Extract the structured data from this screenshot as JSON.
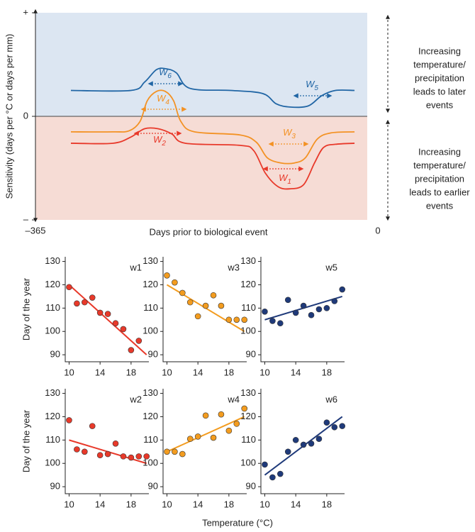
{
  "shared_x_label": "Temperature (°C)",
  "chart_data": [
    {
      "type": "line",
      "y_label": "Sensitivity (days per °C or days per mm)",
      "x_label": "Days prior to biological event",
      "xlim": [
        -365,
        0
      ],
      "xticks": [
        {
          "value": -365,
          "label": "–365"
        },
        0
      ],
      "ylim": [
        -1,
        1
      ],
      "yticks": [
        {
          "value": 1,
          "label": "+"
        },
        0,
        {
          "value": -1,
          "label": "–"
        }
      ],
      "positive_color": "#dce6f2",
      "negative_color": "#f6dcd5",
      "series": [
        {
          "color": "#2166a5",
          "x": [
            -326,
            -260,
            -245,
            -232,
            -222,
            -210,
            -195,
            -150,
            -115,
            -100,
            -85,
            -65,
            -50,
            -35,
            -14
          ],
          "values": [
            0.25,
            0.25,
            0.33,
            0.45,
            0.46,
            0.42,
            0.27,
            0.25,
            0.22,
            0.12,
            0.09,
            0.1,
            0.2,
            0.25,
            0.25
          ]
        },
        {
          "color": "#f39224",
          "x": [
            -326,
            -280,
            -262,
            -250,
            -242,
            -232,
            -222,
            -213,
            -205,
            -190,
            -140,
            -122,
            -110,
            -95,
            -80,
            -68,
            -55,
            -40,
            -14
          ],
          "values": [
            -0.15,
            -0.15,
            -0.14,
            -0.05,
            0.15,
            0.24,
            0.24,
            0.15,
            -0.05,
            -0.15,
            -0.18,
            -0.25,
            -0.4,
            -0.45,
            -0.45,
            -0.4,
            -0.22,
            -0.16,
            -0.15
          ]
        },
        {
          "color": "#e8392a",
          "x": [
            -326,
            -280,
            -260,
            -245,
            -230,
            -215,
            -200,
            -140,
            -125,
            -112,
            -98,
            -85,
            -70,
            -58,
            -48,
            -35,
            -14
          ],
          "values": [
            -0.26,
            -0.26,
            -0.2,
            -0.12,
            -0.12,
            -0.17,
            -0.26,
            -0.28,
            -0.33,
            -0.55,
            -0.68,
            -0.7,
            -0.66,
            -0.45,
            -0.3,
            -0.27,
            -0.26
          ]
        }
      ],
      "annotations": [
        {
          "letter": "W",
          "index": "6",
          "color": "#2166a5"
        },
        {
          "letter": "W",
          "index": "5",
          "color": "#2166a5"
        },
        {
          "letter": "W",
          "index": "4",
          "color": "#f39224"
        },
        {
          "letter": "W",
          "index": "3",
          "color": "#f39224"
        },
        {
          "letter": "W",
          "index": "2",
          "color": "#e8392a"
        },
        {
          "letter": "W",
          "index": "1",
          "color": "#e8392a"
        }
      ],
      "side_notes": [
        [
          "Increasing",
          "temperature/",
          "precipitation",
          "leads to later",
          "events"
        ],
        [
          "Increasing",
          "temperature/",
          "precipitation",
          "leads to earlier",
          "events"
        ]
      ]
    },
    {
      "type": "scatter",
      "title": "w1",
      "y_label": "Day of the year",
      "color": "#e8392a",
      "xlim": [
        9.5,
        20.3
      ],
      "xticks": [
        10,
        14,
        18
      ],
      "ylim": [
        87,
        132
      ],
      "yticks": [
        90,
        100,
        110,
        120,
        130
      ],
      "x": [
        10,
        11,
        12,
        13,
        14,
        15,
        16,
        17,
        18,
        19
      ],
      "values": [
        119,
        112,
        112.5,
        114.5,
        108,
        107.5,
        103.5,
        101,
        92,
        96
      ],
      "trend": {
        "x": [
          10,
          20
        ],
        "values": [
          120,
          90
        ]
      }
    },
    {
      "type": "scatter",
      "title": "w3",
      "color": "#f39c1f",
      "xlim": [
        9.5,
        20.3
      ],
      "xticks": [
        10,
        14,
        18
      ],
      "ylim": [
        87,
        132
      ],
      "yticks": [
        90,
        100,
        110,
        120,
        130
      ],
      "x": [
        10,
        11,
        12,
        13,
        14,
        15,
        16,
        17,
        18,
        19,
        20
      ],
      "values": [
        124,
        121,
        116.5,
        112.5,
        106.5,
        111,
        115.5,
        111,
        105,
        105,
        105
      ],
      "trend": {
        "x": [
          10,
          20
        ],
        "values": [
          120,
          100
        ]
      }
    },
    {
      "type": "scatter",
      "title": "w5",
      "color": "#1f3a7a",
      "xlim": [
        9.5,
        20.3
      ],
      "xticks": [
        10,
        14,
        18
      ],
      "ylim": [
        87,
        132
      ],
      "yticks": [
        90,
        100,
        110,
        120,
        130
      ],
      "x": [
        10,
        11,
        12,
        13,
        14,
        15,
        16,
        17,
        18,
        19,
        20
      ],
      "values": [
        108.5,
        104.5,
        103.5,
        113.5,
        108,
        111,
        107,
        109.5,
        110,
        113,
        118
      ],
      "trend": {
        "x": [
          10,
          20
        ],
        "values": [
          105,
          115
        ]
      }
    },
    {
      "type": "scatter",
      "title": "w2",
      "y_label": "Day of the year",
      "color": "#e8392a",
      "xlim": [
        9.5,
        20.3
      ],
      "xticks": [
        10,
        14,
        18
      ],
      "ylim": [
        87,
        132
      ],
      "yticks": [
        90,
        100,
        110,
        120,
        130
      ],
      "x": [
        10,
        11,
        12,
        13,
        14,
        15,
        16,
        17,
        18,
        19,
        20
      ],
      "values": [
        118.5,
        106,
        105,
        116,
        103.5,
        104,
        108.5,
        103,
        102.5,
        103,
        103
      ],
      "trend": {
        "x": [
          10,
          20
        ],
        "values": [
          110,
          100
        ]
      }
    },
    {
      "type": "scatter",
      "title": "w4",
      "color": "#f39c1f",
      "xlim": [
        9.5,
        20.3
      ],
      "xticks": [
        10,
        14,
        18
      ],
      "ylim": [
        87,
        132
      ],
      "yticks": [
        90,
        100,
        110,
        120,
        130
      ],
      "x": [
        10,
        11,
        12,
        13,
        14,
        15,
        16,
        17,
        18,
        19,
        20
      ],
      "values": [
        105,
        105,
        104,
        110.5,
        111.5,
        120.5,
        111,
        121,
        114,
        117,
        123.5
      ],
      "trend": {
        "x": [
          10,
          20
        ],
        "values": [
          105,
          120
        ]
      }
    },
    {
      "type": "scatter",
      "title": "w6",
      "color": "#1f3a7a",
      "xlim": [
        9.5,
        20.3
      ],
      "xticks": [
        10,
        14,
        18
      ],
      "ylim": [
        87,
        132
      ],
      "yticks": [
        90,
        100,
        110,
        120,
        130
      ],
      "x": [
        10,
        11,
        12,
        13,
        14,
        15,
        16,
        17,
        18,
        19,
        20
      ],
      "values": [
        99.5,
        94,
        95.5,
        105,
        110,
        108,
        108.5,
        110.5,
        117.5,
        115.5,
        116
      ],
      "trend": {
        "x": [
          10,
          20
        ],
        "values": [
          95,
          120
        ]
      }
    }
  ]
}
